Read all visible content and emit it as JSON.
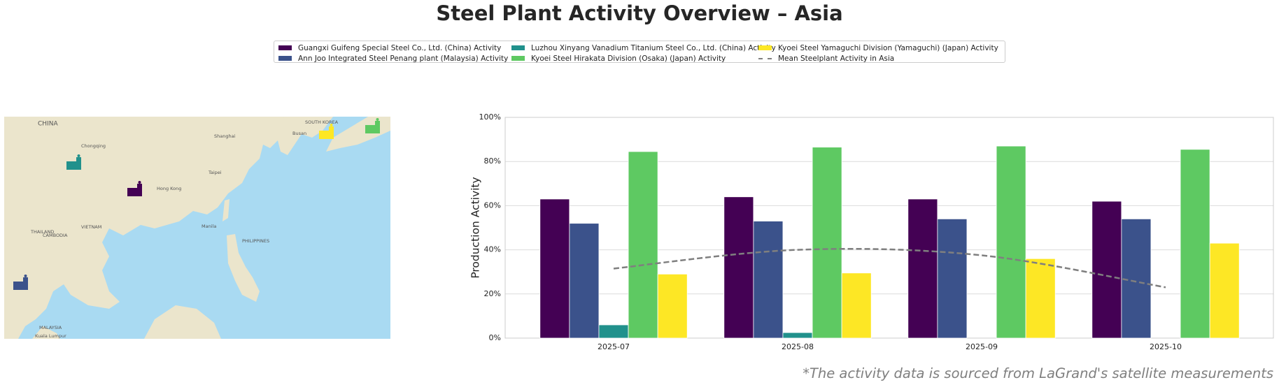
{
  "chart_data": {
    "type": "bar",
    "title": "Steel Plant Activity Overview – Asia",
    "ylabel": "Production Activity",
    "categories": [
      "2025-07",
      "2025-08",
      "2025-09",
      "2025-10"
    ],
    "series": [
      {
        "name": "Guangxi Guifeng Special Steel Co., Ltd. (China) Activity",
        "color": "#440154",
        "values": [
          63,
          64,
          63,
          62
        ]
      },
      {
        "name": "Ann Joo Integrated Steel Penang plant (Malaysia) Activity",
        "color": "#3b528b",
        "values": [
          52,
          53,
          54,
          54
        ]
      },
      {
        "name": "Luzhou Xinyang Vanadium Titanium Steel Co., Ltd. (China) Activity",
        "color": "#21918c",
        "values": [
          6,
          2.5,
          null,
          null
        ]
      },
      {
        "name": "Kyoei Steel Hirakata Division (Osaka) (Japan) Activity",
        "color": "#5ec962",
        "values": [
          84.5,
          86.5,
          87,
          85.5
        ]
      },
      {
        "name": "Kyoei Steel Yamaguchi Division (Yamaguchi) (Japan) Activity",
        "color": "#fde725",
        "values": [
          29,
          29.5,
          36,
          43
        ]
      }
    ],
    "mean_line": {
      "name": "Mean Steelplant Activity in Asia",
      "color": "#7f7f7f",
      "values": [
        31.5,
        40,
        37.5,
        23
      ]
    },
    "ylim": [
      0,
      100
    ],
    "yticks": [
      {
        "value": 0,
        "label": "0%"
      },
      {
        "value": 20,
        "label": "20%"
      },
      {
        "value": 40,
        "label": "40%"
      },
      {
        "value": 60,
        "label": "60%"
      },
      {
        "value": 80,
        "label": "80%"
      },
      {
        "value": 100,
        "label": "100%"
      }
    ],
    "grid": true,
    "footnote": "*The activity data is sourced from LaGrand's satellite measurements"
  },
  "map": {
    "labels": [
      "CHINA",
      "SOUTH KOREA",
      "Busan",
      "Taipei",
      "Hong Kong",
      "VIETNAM",
      "THAILAND",
      "CAMBODIA",
      "PHILIPPINES",
      "Manila",
      "MALAYSIA",
      "Kuala Lumpur",
      "Chongqing",
      "Shanghai"
    ]
  }
}
